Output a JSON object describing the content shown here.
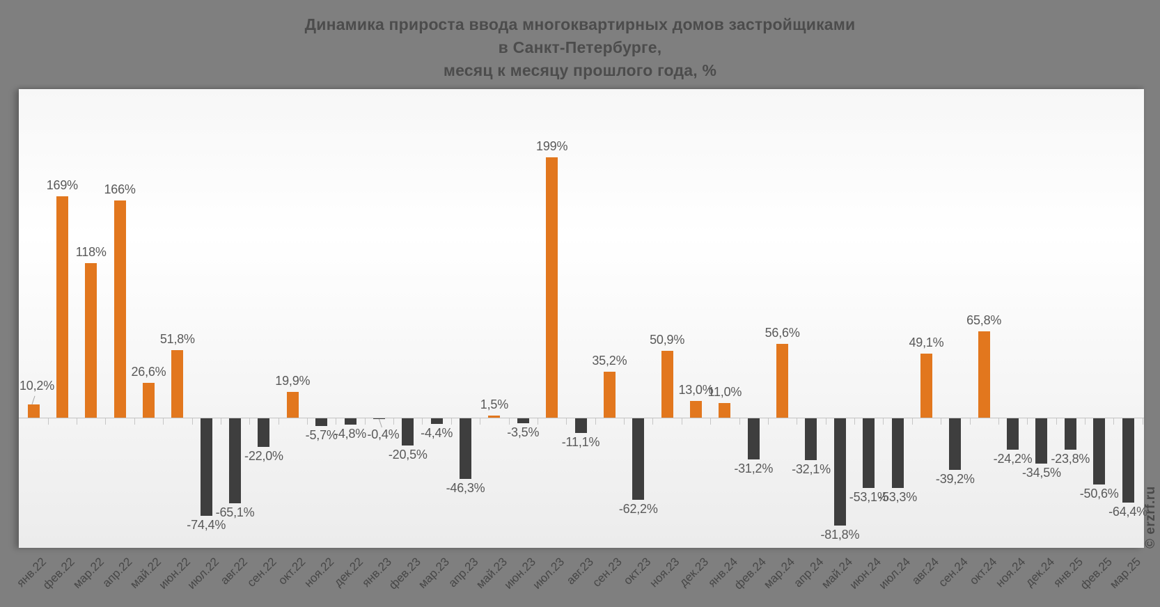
{
  "title": {
    "line1": "Динамика прироста ввода многоквартирных домов застройщиками",
    "line2": "в Санкт-Петербурге,",
    "line3": "месяц к месяцу прошлого года, %"
  },
  "watermark": "© erzrf.ru",
  "colors": {
    "background": "#7f7f7f",
    "positive_bar": "#e2771e",
    "negative_bar": "#3e3e3e",
    "value_label": "#595959",
    "axis_label": "#474747",
    "title_text": "#4c4c4c",
    "axis_line": "#c2c2c2"
  },
  "chart_data": {
    "type": "bar",
    "title": "Динамика прироста ввода многоквартирных домов застройщиками в Санкт-Петербурге, месяц к месяцу прошлого года, %",
    "xlabel": "",
    "ylabel": "%",
    "ylim": [
      -100,
      250
    ],
    "grid": false,
    "legend_position": "none",
    "baseline": 0,
    "positive_color": "#e2771e",
    "negative_color": "#3e3e3e",
    "categories": [
      "янв.22",
      "фев.22",
      "мар.22",
      "апр.22",
      "май.22",
      "июн.22",
      "июл.22",
      "авг.22",
      "сен.22",
      "окт.22",
      "ноя.22",
      "дек.22",
      "янв.23",
      "фев.23",
      "мар.23",
      "апр.23",
      "май.23",
      "июн.23",
      "июл.23",
      "авг.23",
      "сен.23",
      "окт.23",
      "ноя.23",
      "дек.23",
      "янв.24",
      "фев.24",
      "мар.24",
      "апр.24",
      "май.24",
      "июн.24",
      "июл.24",
      "авг.24",
      "сен.24",
      "окт.24",
      "ноя.24",
      "дек.24",
      "янв.25",
      "фев.25",
      "мар.25"
    ],
    "values": [
      10.2,
      169,
      118,
      166,
      26.6,
      51.8,
      -74.4,
      -65.1,
      -22.0,
      19.9,
      -5.7,
      -4.8,
      -0.4,
      -20.5,
      -4.4,
      -46.3,
      1.5,
      -3.5,
      199,
      -11.1,
      35.2,
      -62.2,
      50.9,
      13.0,
      11.0,
      -31.2,
      56.6,
      -32.1,
      -81.8,
      -53.1,
      -53.3,
      49.1,
      -39.2,
      65.8,
      -24.2,
      -34.5,
      -23.8,
      -50.6,
      -64.4
    ],
    "labels": [
      "10,2%",
      "169%",
      "118%",
      "166%",
      "26,6%",
      "51,8%",
      "-74,4%",
      "-65,1%",
      "-22,0%",
      "19,9%",
      "-5,7%",
      "-4,8%",
      "-0,4%",
      "-20,5%",
      "-4,4%",
      "-46,3%",
      "1,5%",
      "-3,5%",
      "199%",
      "-11,1%",
      "35,2%",
      "-62,2%",
      "50,9%",
      "13,0%",
      "11,0%",
      "-31,2%",
      "56,6%",
      "-32,1%",
      "-81,8%",
      "-53,1%",
      "-53,3%",
      "49,1%",
      "-39,2%",
      "65,8%",
      "-24,2%",
      "-34,5%",
      "-23,8%",
      "-50,6%",
      "-64,4%"
    ]
  }
}
